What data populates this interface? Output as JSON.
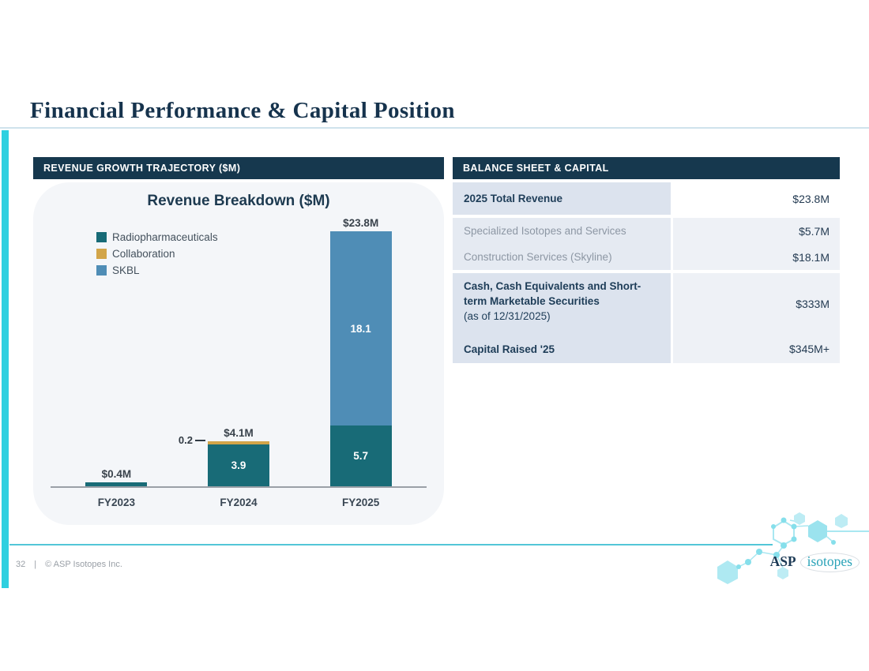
{
  "page": {
    "title": "Financial Performance & Capital Position",
    "footer": {
      "page_number": "32",
      "divider": "|",
      "copyright": "© ASP Isotopes Inc."
    },
    "logo": {
      "prefix": "ASP",
      "suffix": "isotopes"
    },
    "colors": {
      "accent_teal": "#2ed0e0",
      "header_navy": "#16384e",
      "title_navy": "#16334d"
    }
  },
  "left_panel": {
    "header": "REVENUE GROWTH TRAJECTORY ($M)"
  },
  "chart_data": {
    "type": "bar",
    "stacked": true,
    "title": "Revenue Breakdown ($M)",
    "categories": [
      "FY2023",
      "FY2024",
      "FY2025"
    ],
    "series": [
      {
        "name": "Radiopharmaceuticals",
        "color": "#186b77",
        "values": [
          0.4,
          3.9,
          5.7
        ]
      },
      {
        "name": "Collaboration",
        "color": "#d2a549",
        "values": [
          0,
          0.2,
          0
        ]
      },
      {
        "name": "SKBL",
        "color": "#4f8db6",
        "values": [
          0,
          0,
          18.1
        ]
      }
    ],
    "total_labels": [
      "$0.4M",
      "$4.1M",
      "$23.8M"
    ],
    "annotations": [
      {
        "text": "0.2",
        "category_index": 1,
        "series_name": "Collaboration"
      }
    ],
    "legend_position": "top-left",
    "ylim": [
      0,
      25
    ],
    "gridlines": false
  },
  "right_panel": {
    "header": "BALANCE SHEET & CAPITAL",
    "blocks": [
      {
        "rows": [
          {
            "label": "2025 Total Revenue",
            "value": "$23.8M"
          }
        ]
      },
      {
        "rows": [
          {
            "label": "Specialized Isotopes and Services",
            "value": "$5.7M"
          },
          {
            "label": "Construction Services (Skyline)",
            "value": "$18.1M"
          }
        ]
      },
      {
        "rows": [
          {
            "label": "Cash, Cash Equivalents and Short-term Marketable Securities",
            "sublabel": "(as of 12/31/2025)",
            "value": "$333M"
          },
          {
            "label": "Capital Raised '25",
            "value": "$345M+"
          }
        ]
      }
    ]
  }
}
